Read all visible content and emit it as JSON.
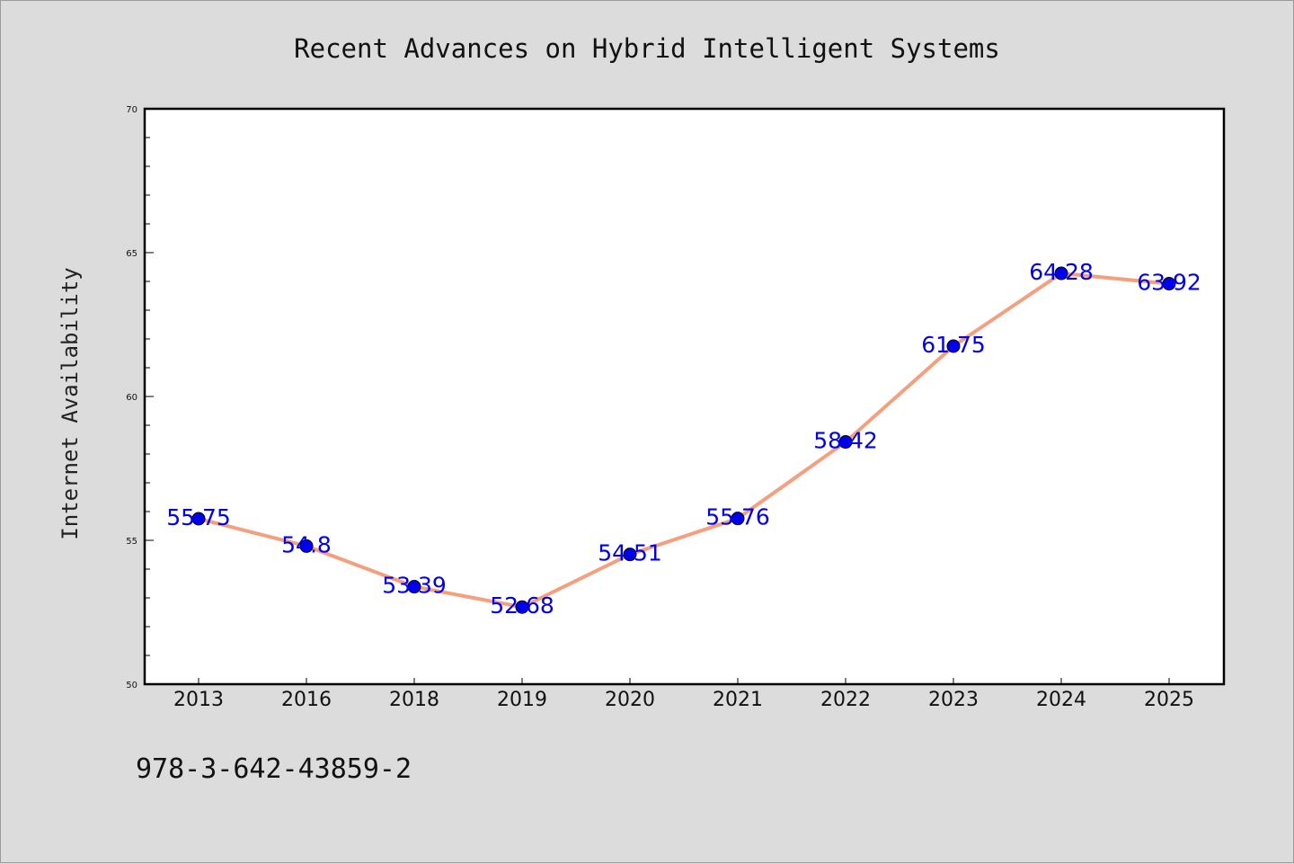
{
  "chart_data": {
    "type": "line",
    "title": "Recent Advances on Hybrid Intelligent Systems",
    "xlabel": "",
    "ylabel": "Internet Availability",
    "categories": [
      "2013",
      "2016",
      "2018",
      "2019",
      "2020",
      "2021",
      "2022",
      "2023",
      "2024",
      "2025"
    ],
    "values": [
      55.75,
      54.8,
      53.39,
      52.68,
      54.51,
      55.76,
      58.42,
      61.75,
      64.28,
      63.92
    ],
    "data_labels": [
      "55.75",
      "54.8",
      "53.39",
      "52.68",
      "54.51",
      "55.76",
      "58.42",
      "61.75",
      "64.28",
      "63.92"
    ],
    "ylim": [
      50,
      70
    ],
    "yticks": [
      "50",
      "55",
      "60",
      "65",
      "70"
    ],
    "grid": false,
    "legend": "none",
    "colors": {
      "line": "#f4a07f",
      "marker": "#0000ee",
      "label": "#0000ee",
      "background": "#dcdcdc",
      "plot_background": "#ffffff"
    }
  },
  "footer": {
    "isbn": "978-3-642-43859-2"
  }
}
